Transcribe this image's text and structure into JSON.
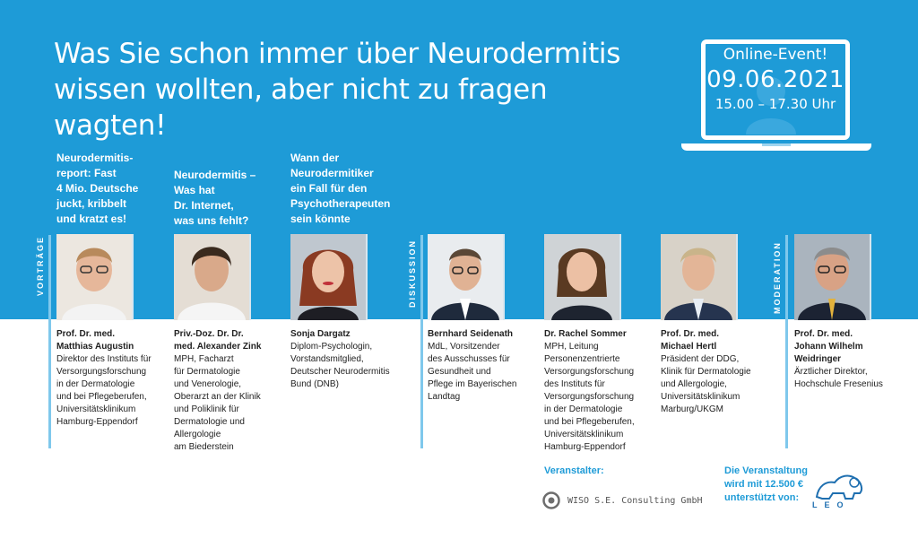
{
  "headline": {
    "line1": "Was Sie schon immer über Neurodermitis",
    "line2": "wissen wollten, aber nicht zu fragen wagten!"
  },
  "event": {
    "kind": "Online-Event!",
    "date": "09.06.2021",
    "time": "15.00 – 17.30 Uhr"
  },
  "sections": {
    "vortraege": "VORTRÄGE",
    "diskussion": "DISKUSSION",
    "moderation": "MODERATION"
  },
  "talks": [
    {
      "title": "Neurodermitis-\nreport: Fast\n4 Mio. Deutsche\njuckt, kribbelt\nund kratzt es!"
    },
    {
      "title": "Neurodermitis –\nWas hat\nDr. Internet,\nwas uns fehlt?"
    },
    {
      "title": "Wann der\nNeurodermitiker\nein Fall für den\nPsychotherapeuten\nsein könnte"
    }
  ],
  "people": [
    {
      "name": "Prof. Dr. med.\nMatthias Augustin",
      "desc": "Direktor des Instituts für\nVersorgungsforschung\nin der Dermatologie\nund bei Pflegeberufen,\nUniversitätsklinikum\nHamburg-Eppendorf"
    },
    {
      "name": "Priv.-Doz. Dr. Dr.\nmed. Alexander Zink",
      "desc": "MPH, Facharzt\nfür Dermatologie\nund Venerologie,\nOberarzt an der Klinik\nund Poliklinik für\nDermatologie und\nAllergologie\nam Biederstein"
    },
    {
      "name": "Sonja Dargatz",
      "desc": "Diplom-Psychologin,\nVorstandsmitglied,\nDeutscher Neurodermitis\nBund (DNB)"
    },
    {
      "name": "Bernhard Seidenath",
      "desc": "MdL, Vorsitzender\ndes Ausschusses für\nGesundheit und\nPflege im Bayerischen\nLandtag"
    },
    {
      "name": "Dr. Rachel Sommer",
      "desc": "MPH, Leitung\nPersonenzentrierte\nVersorgungsforschung\ndes Instituts für\nVersorgungsforschung\nin der Dermatologie\nund bei Pflegeberufen,\nUniversitätsklinikum\nHamburg-Eppendorf"
    },
    {
      "name": "Prof. Dr. med.\nMichael Hertl",
      "desc": "Präsident der DDG,\nKlinik für Dermatologie\nund Allergologie,\nUniversitätsklinikum\nMarburg/UKGM"
    },
    {
      "name": "Prof. Dr. med.\nJohann Wilhelm\nWeidringer",
      "desc": "Ärztlicher Direktor,\nHochschule Fresenius"
    }
  ],
  "organizer": {
    "label": "Veranstalter:",
    "name": "WISO S.E. Consulting GmbH"
  },
  "sponsor": {
    "label": "Die Veranstaltung\nwird mit 12.500 €\nunterstützt von:",
    "logo_text": "LEO"
  },
  "colors": {
    "brand_blue": "#1e9bd7",
    "white": "#ffffff",
    "text_dark": "#222222"
  }
}
